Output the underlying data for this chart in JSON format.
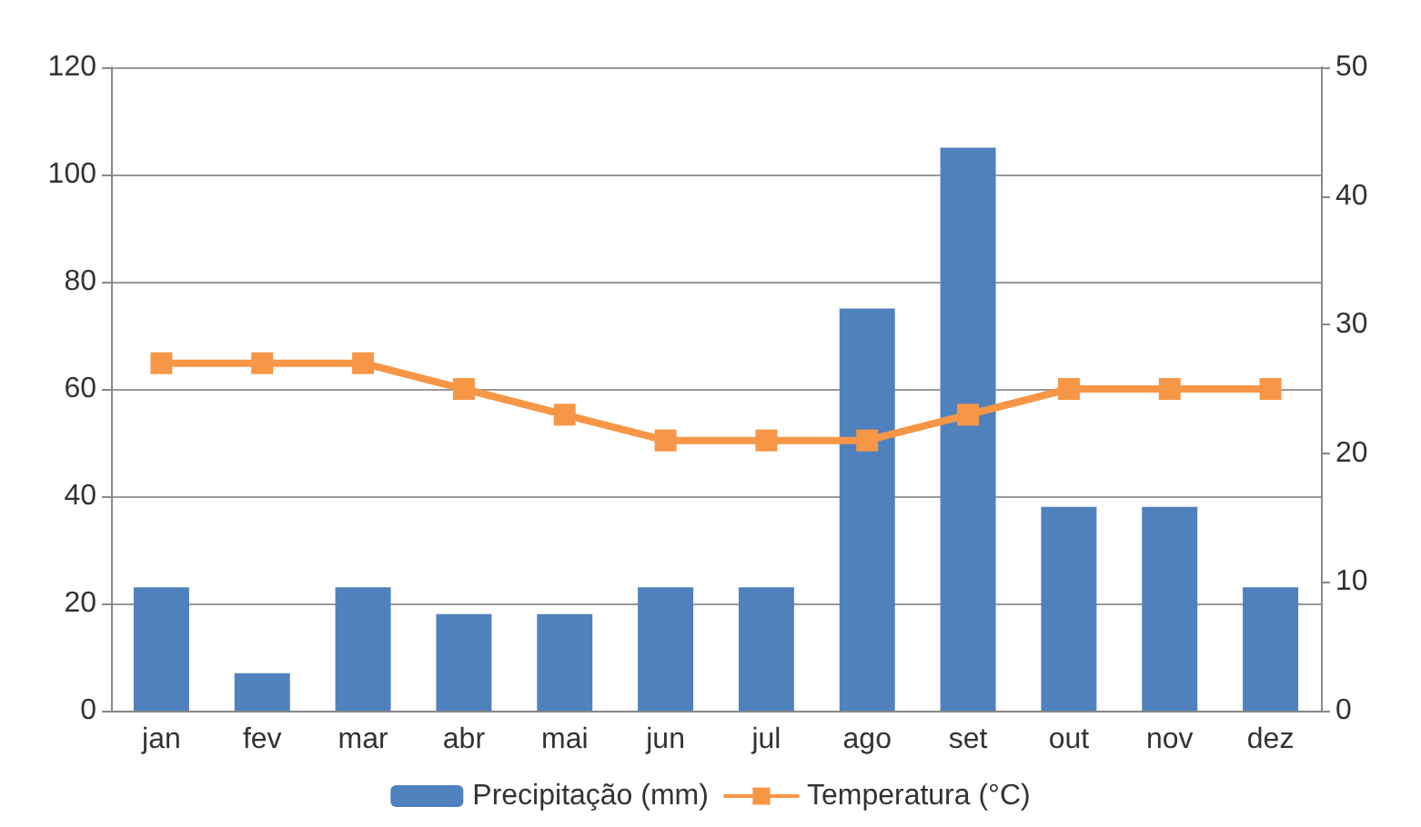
{
  "chart_data": {
    "type": "bar",
    "categories": [
      "jan",
      "fev",
      "mar",
      "abr",
      "mai",
      "jun",
      "jul",
      "ago",
      "set",
      "out",
      "nov",
      "dez"
    ],
    "series": [
      {
        "name": "Precipitação (mm)",
        "color": "#4f81bd",
        "values": [
          23,
          7,
          23,
          18,
          18,
          23,
          23,
          75,
          105,
          38,
          38,
          23
        ]
      },
      {
        "name": "Temperatura (°C)",
        "type": "line",
        "axis": "y2",
        "color": "#f79646",
        "marker": "square",
        "values": [
          27,
          27,
          27,
          25,
          23,
          21,
          21,
          21,
          23,
          25,
          25,
          25
        ]
      }
    ],
    "ylim": [
      0,
      120
    ],
    "yticks": [
      0,
      20,
      40,
      60,
      80,
      100,
      120
    ],
    "y2lim": [
      0,
      50
    ],
    "y2ticks": [
      0,
      10,
      20,
      30,
      40,
      50
    ],
    "grid": "y",
    "legend": "bottom"
  }
}
